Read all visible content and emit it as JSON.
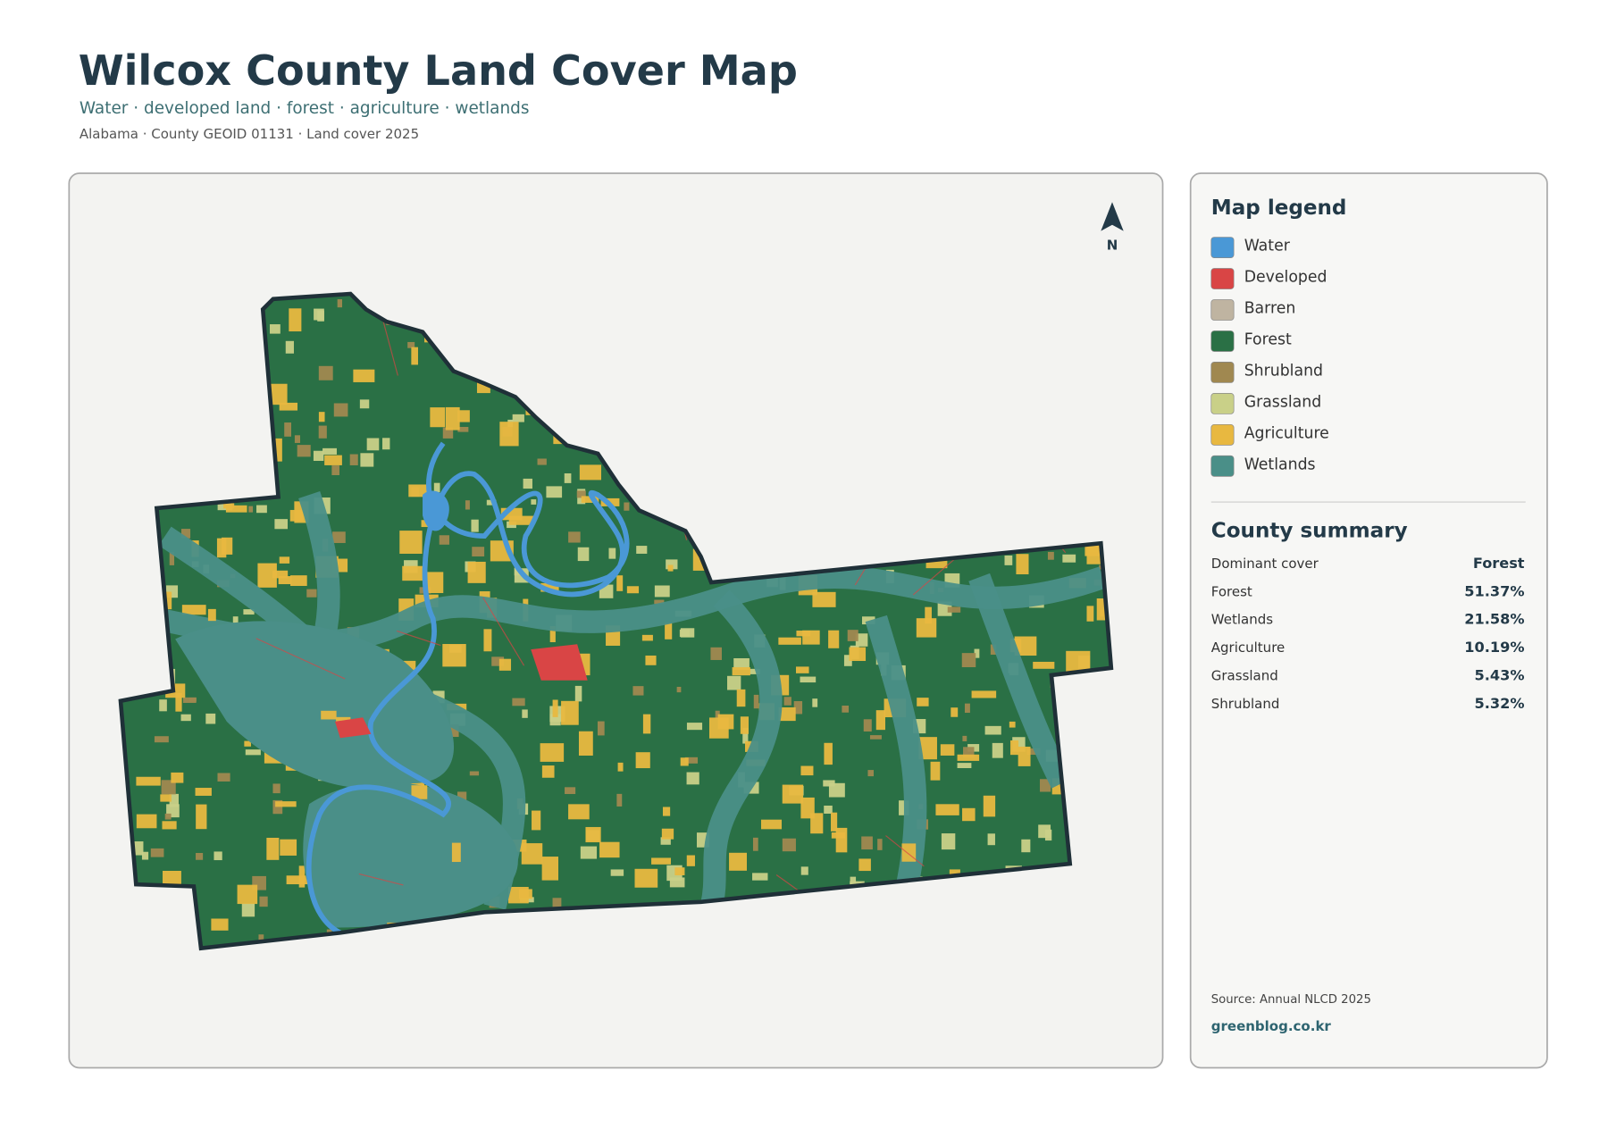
{
  "header": {
    "title": "Wilcox County Land Cover Map",
    "subtitle": "Water · developed land · forest · agriculture · wetlands",
    "meta": "Alabama · County GEOID 01131 · Land cover 2025"
  },
  "map": {
    "north_label": "N"
  },
  "legend": {
    "title": "Map legend",
    "items": [
      {
        "label": "Water",
        "color": "#4a98d6"
      },
      {
        "label": "Developed",
        "color": "#d94545"
      },
      {
        "label": "Barren",
        "color": "#bfb4a1"
      },
      {
        "label": "Forest",
        "color": "#2a7045"
      },
      {
        "label": "Shrubland",
        "color": "#a08850"
      },
      {
        "label": "Grassland",
        "color": "#c9d088"
      },
      {
        "label": "Agriculture",
        "color": "#e8b840"
      },
      {
        "label": "Wetlands",
        "color": "#4a8f88"
      }
    ]
  },
  "summary": {
    "title": "County summary",
    "rows": [
      [
        "Dominant cover",
        "Forest"
      ],
      [
        "Forest",
        "51.37%"
      ],
      [
        "Wetlands",
        "21.58%"
      ],
      [
        "Agriculture",
        "10.19%"
      ],
      [
        "Grassland",
        "5.43%"
      ],
      [
        "Shrubland",
        "5.32%"
      ]
    ]
  },
  "footer": {
    "source": "Source: Annual NLCD 2025",
    "site": "greenblog.co.kr"
  }
}
